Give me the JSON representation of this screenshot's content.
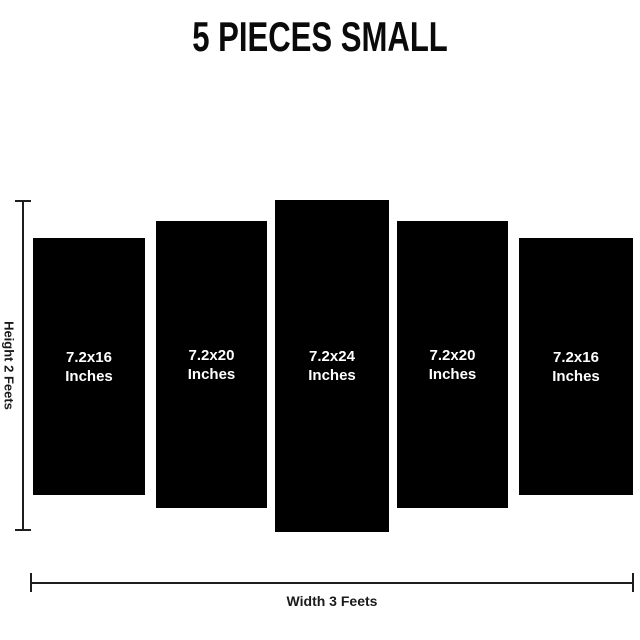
{
  "title": "5 PIECES SMALL",
  "pieces": [
    {
      "size": "7.2x16",
      "unit": "Inches"
    },
    {
      "size": "7.2x20",
      "unit": "Inches"
    },
    {
      "size": "7.2x24",
      "unit": "Inches"
    },
    {
      "size": "7.2x20",
      "unit": "Inches"
    },
    {
      "size": "7.2x16",
      "unit": "Inches"
    }
  ],
  "dimensions": {
    "height_label": "Height 2 Feets",
    "width_label": "Width 3 Feets"
  },
  "colors": {
    "background": "#ffffff",
    "panel": "#000000",
    "panel_text": "#ffffff",
    "dimension_line": "#1e1e1e",
    "title_text": "#0a0a0a"
  }
}
